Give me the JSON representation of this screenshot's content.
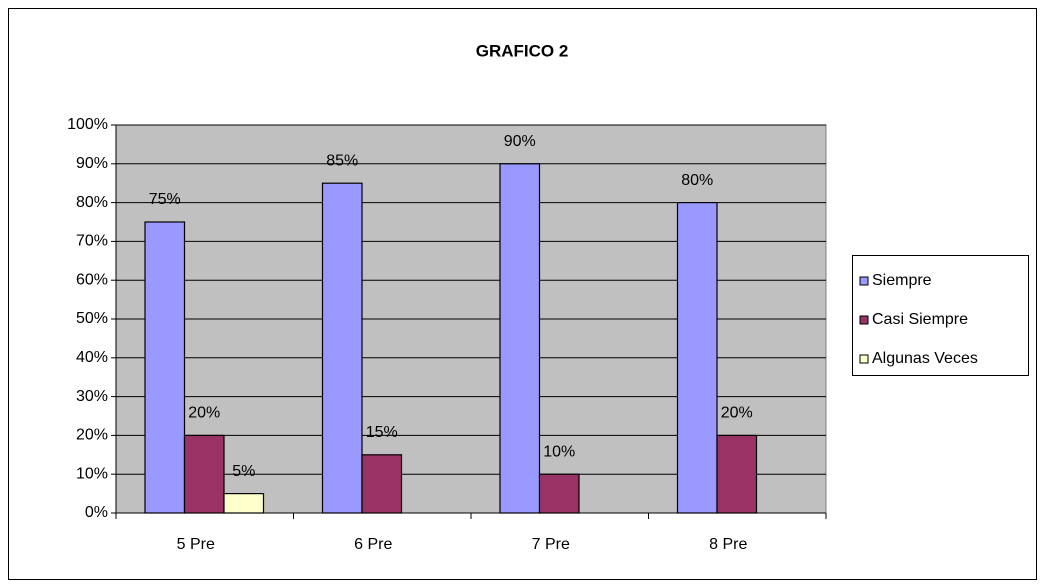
{
  "chart_data": {
    "type": "bar",
    "title": "GRAFICO 2",
    "categories": [
      "5 Pre",
      "6 Pre",
      "7 Pre",
      "8 Pre"
    ],
    "series": [
      {
        "name": "Siempre",
        "color": "#9999ff",
        "values": [
          75,
          85,
          90,
          80
        ],
        "value_labels": [
          "75%",
          "85%",
          "90%",
          "80%"
        ]
      },
      {
        "name": "Casi Siempre",
        "color": "#993366",
        "values": [
          20,
          15,
          10,
          20
        ],
        "value_labels": [
          "20%",
          "15%",
          "10%",
          "20%"
        ]
      },
      {
        "name": "Algunas Veces",
        "color": "#ffffcc",
        "values": [
          5,
          null,
          null,
          null
        ],
        "value_labels": [
          "5%",
          null,
          null,
          null
        ]
      }
    ],
    "ylim": [
      0,
      100
    ],
    "yticks": [
      {
        "value": 0,
        "label": "0%"
      },
      {
        "value": 10,
        "label": "10%"
      },
      {
        "value": 20,
        "label": "20%"
      },
      {
        "value": 30,
        "label": "30%"
      },
      {
        "value": 40,
        "label": "40%"
      },
      {
        "value": 50,
        "label": "50%"
      },
      {
        "value": 60,
        "label": "60%"
      },
      {
        "value": 70,
        "label": "70%"
      },
      {
        "value": 80,
        "label": "80%"
      },
      {
        "value": 90,
        "label": "90%"
      },
      {
        "value": 100,
        "label": "100%"
      }
    ],
    "grid": true,
    "legend": "right",
    "plot_background": "#c0c0c0"
  }
}
